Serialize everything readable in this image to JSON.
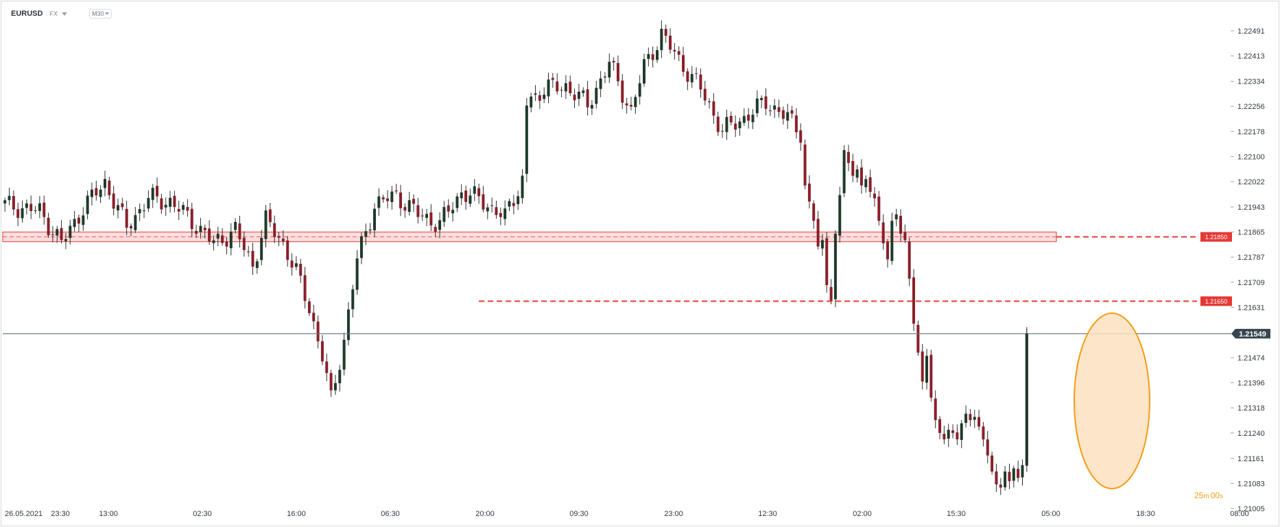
{
  "header": {
    "symbol": "EURUSD",
    "exchange": "FX",
    "timeframe": "M30"
  },
  "countdown": {
    "minutes": "25",
    "minutes_unit": "m",
    "seconds": "00",
    "seconds_unit": "s"
  },
  "colors": {
    "bull": "#1f3a2a",
    "bear": "#8a1f2a",
    "wick": "#2b2b2b",
    "level": "#e53935",
    "zone_fill": "#f7c8c8",
    "current_price_line": "#6b7a86",
    "current_price_tag": "#37474f",
    "highlight_fill": "#fbe0bf",
    "highlight_stroke": "#f39c12",
    "axis_text": "#333a40"
  },
  "chart_data": {
    "type": "candlestick",
    "title": "",
    "xlabel": "",
    "ylabel": "",
    "ylim": [
      1.2098,
      1.2253
    ],
    "y_ticks": [
      "1.22491",
      "1.22413",
      "1.22334",
      "1.22256",
      "1.22178",
      "1.22100",
      "1.22022",
      "1.21943",
      "1.21865",
      "1.21787",
      "1.21709",
      "1.21631",
      "1.21474",
      "1.21396",
      "1.21318",
      "1.21240",
      "1.21161",
      "1.21083",
      "1.21005"
    ],
    "x_ticks": [
      "26.05.2021",
      "23:30",
      "13:00",
      "02:30",
      "16:00",
      "06:30",
      "20:00",
      "09:30",
      "23:00",
      "12:30",
      "02:00",
      "15:30",
      "05:00",
      "18:30",
      "08:00"
    ],
    "candles_count": 236,
    "levels": [
      {
        "label": "1.21850",
        "price": 1.2185,
        "style": "dashed",
        "zone": [
          1.21835,
          1.21865
        ]
      },
      {
        "label": "1.21650",
        "price": 1.2165,
        "style": "dashed"
      }
    ],
    "current_price": {
      "label": "1.21549",
      "value": 1.21549
    },
    "path": [
      [
        0,
        1.2195
      ],
      [
        8,
        1.2193
      ],
      [
        13,
        1.2183
      ],
      [
        18,
        1.2194
      ],
      [
        23,
        1.2202
      ],
      [
        28,
        1.2188
      ],
      [
        33,
        1.2197
      ],
      [
        38,
        1.2196
      ],
      [
        43,
        1.219
      ],
      [
        48,
        1.2183
      ],
      [
        53,
        1.2187
      ],
      [
        57,
        1.2176
      ],
      [
        60,
        1.219
      ],
      [
        64,
        1.2183
      ],
      [
        67,
        1.2174
      ],
      [
        70,
        1.2163
      ],
      [
        73,
        1.2148
      ],
      [
        75,
        1.2134
      ],
      [
        78,
        1.2153
      ],
      [
        81,
        1.2178
      ],
      [
        85,
        1.2195
      ],
      [
        90,
        1.2198
      ],
      [
        95,
        1.2192
      ],
      [
        100,
        1.2189
      ],
      [
        105,
        1.2199
      ],
      [
        110,
        1.2196
      ],
      [
        115,
        1.2191
      ],
      [
        119,
        1.2203
      ],
      [
        123,
        1.2201
      ],
      [
        126,
        1.2229
      ],
      [
        130,
        1.2228
      ],
      [
        135,
        1.2226
      ],
      [
        140,
        1.2231
      ],
      [
        145,
        1.2232
      ],
      [
        150,
        1.2226
      ],
      [
        155,
        1.2239
      ],
      [
        160,
        1.2224
      ],
      [
        163,
        1.2238
      ],
      [
        167,
        1.2248
      ],
      [
        171,
        1.224
      ],
      [
        176,
        1.2231
      ],
      [
        181,
        1.2218
      ],
      [
        186,
        1.2222
      ],
      [
        191,
        1.2227
      ],
      [
        196,
        1.2222
      ],
      [
        200,
        1.2216
      ],
      [
        203,
        1.22
      ],
      [
        206,
        1.2182
      ],
      [
        209,
        1.2171
      ],
      [
        212,
        1.2169
      ],
      [
        215,
        1.2185
      ],
      [
        218,
        1.2197
      ]
    ]
  }
}
